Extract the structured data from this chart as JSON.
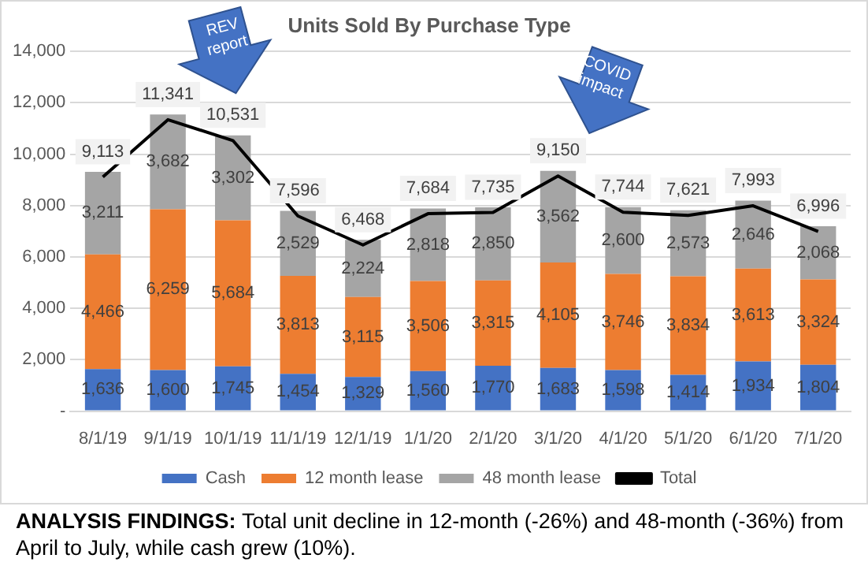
{
  "chart_data": {
    "type": "bar",
    "title": "Units Sold By Purchase Type",
    "categories": [
      "8/1/19",
      "9/1/19",
      "10/1/19",
      "11/1/19",
      "12/1/19",
      "1/1/20",
      "2/1/20",
      "3/1/20",
      "4/1/20",
      "5/1/20",
      "6/1/20",
      "7/1/20"
    ],
    "series": [
      {
        "name": "Cash",
        "color": "#4472c4",
        "values": [
          1636,
          1600,
          1745,
          1454,
          1329,
          1560,
          1770,
          1683,
          1598,
          1414,
          1934,
          1804
        ],
        "value_labels": [
          "1,636",
          "1,600",
          "1,745",
          "1,454",
          "1,329",
          "1,560",
          "1,770",
          "1,683",
          "1,598",
          "1,414",
          "1,934",
          "1,804"
        ]
      },
      {
        "name": "12 month lease",
        "color": "#ed7d31",
        "values": [
          4466,
          6259,
          5684,
          3813,
          3115,
          3506,
          3315,
          4105,
          3746,
          3834,
          3613,
          3324
        ],
        "value_labels": [
          "4,466",
          "6,259",
          "5,684",
          "3,813",
          "3,115",
          "3,506",
          "3,315",
          "4,105",
          "3,746",
          "3,834",
          "3,613",
          "3,324"
        ]
      },
      {
        "name": "48 month lease",
        "color": "#a5a5a5",
        "values": [
          3211,
          3682,
          3302,
          2529,
          2224,
          2818,
          2850,
          3562,
          2600,
          2573,
          2646,
          2068
        ],
        "value_labels": [
          "3,211",
          "3,682",
          "3,302",
          "2,529",
          "2,224",
          "2,818",
          "2,850",
          "3,562",
          "2,600",
          "2,573",
          "2,646",
          "2,068"
        ]
      },
      {
        "name": "Total",
        "type": "line",
        "color": "#000000",
        "values": [
          9113,
          11341,
          10531,
          7596,
          6468,
          7684,
          7735,
          9150,
          7744,
          7621,
          7993,
          6996
        ],
        "value_labels": [
          "9,113",
          "11,341",
          "10,531",
          "7,596",
          "6,468",
          "7,684",
          "7,735",
          "9,150",
          "7,744",
          "7,621",
          "7,993",
          "6,996"
        ]
      }
    ],
    "stacked": true,
    "marker": "none",
    "grid": "y",
    "legend": "bottom",
    "ylim": [
      0,
      14000
    ],
    "yticks": [
      {
        "value": 0,
        "label": "-"
      },
      {
        "value": 2000,
        "label": "2,000"
      },
      {
        "value": 4000,
        "label": "4,000"
      },
      {
        "value": 6000,
        "label": "6,000"
      },
      {
        "value": 8000,
        "label": "8,000"
      },
      {
        "value": 10000,
        "label": "10,000"
      },
      {
        "value": 12000,
        "label": "12,000"
      },
      {
        "value": 14000,
        "label": "14,000"
      }
    ],
    "annotations": [
      "REV report",
      "COVID impact",
      "ANALYSIS FINDINGS:",
      "Total unit decline in 12-month (-26%) and 48-month (-36%) from April to July, while cash grew (10%)."
    ]
  }
}
